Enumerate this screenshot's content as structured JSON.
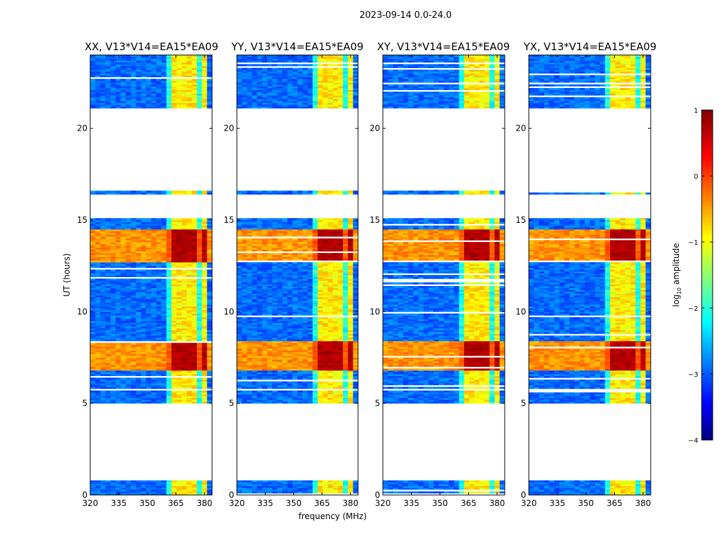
{
  "figure": {
    "suptitle": "2023-09-14 0.0-24.0",
    "xlabel": "frequency (MHz)",
    "ylabel": "UT (hours)",
    "colorbar_label": "log",
    "colorbar_label_sub": "10",
    "colorbar_label_rest": " amplitude",
    "colorbar_ticks": [
      "1",
      "0",
      "−1",
      "−2",
      "−3",
      "−4"
    ]
  },
  "chart_data": {
    "type": "heatmap",
    "x_ticks": [
      320,
      335,
      350,
      365,
      380
    ],
    "x_tick_labels": [
      "320",
      "335",
      "350",
      "365",
      "380"
    ],
    "xlim": [
      320,
      384
    ],
    "y_ticks": [
      0,
      5,
      10,
      15,
      20
    ],
    "y_tick_labels": [
      "0",
      "5",
      "10",
      "15",
      "20"
    ],
    "ylim": [
      0,
      24
    ],
    "color_scale": {
      "min": -4,
      "max": 1,
      "colormap": "jet"
    },
    "panels": [
      {
        "title": "XX, V13*V14=EA15*EA09"
      },
      {
        "title": "YY, V13*V14=EA15*EA09"
      },
      {
        "title": "XY, V13*V14=EA15*EA09"
      },
      {
        "title": "YX, V13*V14=EA15*EA09"
      }
    ],
    "data_time_ranges_hours": [
      [
        0.0,
        0.8
      ],
      [
        5.0,
        5.7
      ],
      [
        5.8,
        15.1
      ],
      [
        16.4,
        16.6
      ],
      [
        21.1,
        24.0
      ]
    ],
    "bright_time_ranges_hours": [
      [
        6.7,
        8.3
      ],
      [
        12.6,
        14.4
      ]
    ],
    "channel_band_centers_mhz": [
      365,
      370,
      375,
      380
    ]
  }
}
